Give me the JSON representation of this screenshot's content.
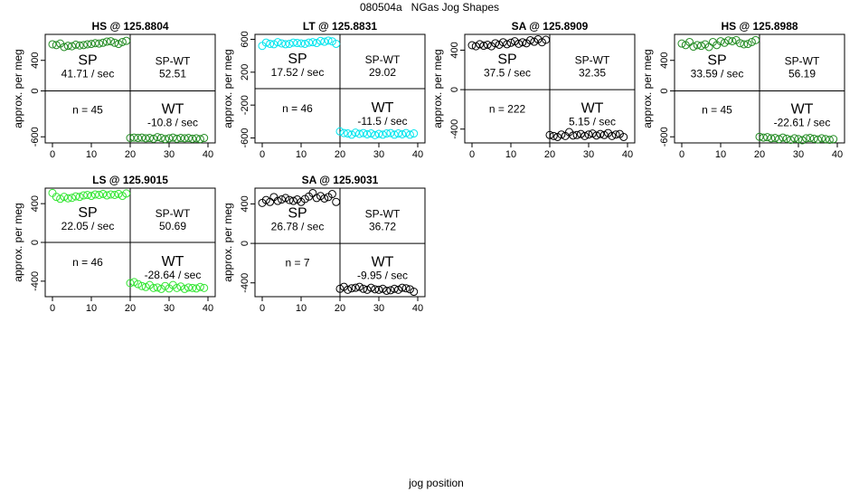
{
  "page": {
    "title": "080504a   NGas Jog Shapes",
    "xlabel": "jog position"
  },
  "chart_data": [
    {
      "type": "scatter",
      "title": "HS @ 125.8804",
      "ylabel": "approx. per meg",
      "xlim": [
        0,
        40
      ],
      "ylim": [
        -680,
        740
      ],
      "x_ticks": [
        0,
        10,
        20,
        30,
        40
      ],
      "y_ticks": [
        -600,
        0,
        400
      ],
      "color": "#228b22",
      "divider_x": 20,
      "divider_y": 0,
      "labels": {
        "sp": "SP",
        "sp_rate": "41.71 / sec",
        "spwt": "SP-WT",
        "spwt_value": "52.51",
        "n": "n = 45",
        "wt": "WT",
        "wt_rate": "-10.8 / sec"
      },
      "x": [
        0,
        1,
        2,
        3,
        4,
        5,
        6,
        7,
        8,
        9,
        10,
        11,
        12,
        13,
        14,
        15,
        16,
        17,
        18,
        19,
        20,
        21,
        22,
        23,
        24,
        25,
        26,
        27,
        28,
        29,
        30,
        31,
        32,
        33,
        34,
        35,
        36,
        37,
        38,
        39
      ],
      "y": [
        610,
        600,
        620,
        575,
        590,
        585,
        605,
        595,
        600,
        610,
        615,
        625,
        620,
        630,
        645,
        650,
        630,
        615,
        640,
        655,
        -615,
        -610,
        -615,
        -610,
        -620,
        -615,
        -625,
        -605,
        -615,
        -630,
        -620,
        -610,
        -625,
        -615,
        -620,
        -615,
        -625,
        -620,
        -630,
        -615
      ]
    },
    {
      "type": "scatter",
      "title": "LT @ 125.8831",
      "ylabel": "approx. per meg",
      "xlim": [
        0,
        40
      ],
      "ylim": [
        -660,
        660
      ],
      "x_ticks": [
        0,
        10,
        20,
        30,
        40
      ],
      "y_ticks": [
        -600,
        -200,
        200,
        600
      ],
      "color": "#00e5ee",
      "divider_x": 20,
      "divider_y": 0,
      "labels": {
        "sp": "SP",
        "sp_rate": "17.52 / sec",
        "spwt": "SP-WT",
        "spwt_value": "29.02",
        "n": "n = 46",
        "wt": "WT",
        "wt_rate": "-11.5 / sec"
      },
      "x": [
        0,
        1,
        2,
        3,
        4,
        5,
        6,
        7,
        8,
        9,
        10,
        11,
        12,
        13,
        14,
        15,
        16,
        17,
        18,
        19,
        20,
        21,
        22,
        23,
        24,
        25,
        26,
        27,
        28,
        29,
        30,
        31,
        32,
        33,
        34,
        35,
        36,
        37,
        38,
        39
      ],
      "y": [
        520,
        560,
        545,
        540,
        565,
        550,
        540,
        545,
        560,
        555,
        550,
        545,
        560,
        565,
        555,
        580,
        570,
        585,
        575,
        545,
        -520,
        -540,
        -545,
        -560,
        -535,
        -550,
        -540,
        -555,
        -545,
        -565,
        -550,
        -560,
        -545,
        -540,
        -560,
        -545,
        -555,
        -540,
        -560,
        -545
      ]
    },
    {
      "type": "scatter",
      "title": "SA @ 125.8909",
      "ylabel": "approx. per meg",
      "xlim": [
        0,
        40
      ],
      "ylim": [
        -540,
        560
      ],
      "x_ticks": [
        0,
        10,
        20,
        30,
        40
      ],
      "y_ticks": [
        -400,
        0,
        400
      ],
      "color": "#000000",
      "divider_x": 20,
      "divider_y": 0,
      "labels": {
        "sp": "SP",
        "sp_rate": "37.5 / sec",
        "spwt": "SP-WT",
        "spwt_value": "32.35",
        "n": "n = 222",
        "wt": "WT",
        "wt_rate": "5.15 / sec"
      },
      "x": [
        0,
        1,
        2,
        3,
        4,
        5,
        6,
        7,
        8,
        9,
        10,
        11,
        12,
        13,
        14,
        15,
        16,
        17,
        18,
        19,
        20,
        21,
        22,
        23,
        24,
        25,
        26,
        27,
        28,
        29,
        30,
        31,
        32,
        33,
        34,
        35,
        36,
        37,
        38,
        39
      ],
      "y": [
        450,
        440,
        460,
        445,
        455,
        440,
        470,
        455,
        480,
        460,
        475,
        490,
        465,
        480,
        470,
        500,
        485,
        510,
        480,
        505,
        -460,
        -470,
        -480,
        -455,
        -470,
        -430,
        -465,
        -460,
        -450,
        -470,
        -455,
        -445,
        -465,
        -450,
        -460,
        -440,
        -470,
        -455,
        -450,
        -480
      ]
    },
    {
      "type": "scatter",
      "title": "HS @ 125.8988",
      "ylabel": "approx. per meg",
      "xlim": [
        0,
        40
      ],
      "ylim": [
        -680,
        740
      ],
      "x_ticks": [
        0,
        10,
        20,
        30,
        40
      ],
      "y_ticks": [
        -600,
        0,
        400
      ],
      "color": "#228b22",
      "divider_x": 20,
      "divider_y": 0,
      "labels": {
        "sp": "SP",
        "sp_rate": "33.59 / sec",
        "spwt": "SP-WT",
        "spwt_value": "56.19",
        "n": "n = 45",
        "wt": "WT",
        "wt_rate": "-22.61 / sec"
      },
      "x": [
        0,
        1,
        2,
        3,
        4,
        5,
        6,
        7,
        8,
        9,
        10,
        11,
        12,
        13,
        14,
        15,
        16,
        17,
        18,
        19,
        20,
        21,
        22,
        23,
        24,
        25,
        26,
        27,
        28,
        29,
        30,
        31,
        32,
        33,
        34,
        35,
        36,
        37,
        38,
        39
      ],
      "y": [
        620,
        600,
        640,
        580,
        600,
        590,
        610,
        575,
        640,
        600,
        650,
        630,
        660,
        650,
        665,
        625,
        610,
        615,
        640,
        665,
        -600,
        -610,
        -605,
        -620,
        -615,
        -630,
        -610,
        -625,
        -640,
        -620,
        -630,
        -645,
        -620,
        -615,
        -625,
        -635,
        -620,
        -630,
        -640,
        -630
      ]
    },
    {
      "type": "scatter",
      "title": "LS @ 125.9015",
      "ylabel": "approx. per meg",
      "xlim": [
        0,
        40
      ],
      "ylim": [
        -560,
        560
      ],
      "x_ticks": [
        0,
        10,
        20,
        30,
        40
      ],
      "y_ticks": [
        -400,
        0,
        400
      ],
      "color": "#32e632",
      "divider_x": 20,
      "divider_y": 0,
      "labels": {
        "sp": "SP",
        "sp_rate": "22.05 / sec",
        "spwt": "SP-WT",
        "spwt_value": "50.69",
        "n": "n = 46",
        "wt": "WT",
        "wt_rate": "-28.64 / sec"
      },
      "x": [
        0,
        1,
        2,
        3,
        4,
        5,
        6,
        7,
        8,
        9,
        10,
        11,
        12,
        13,
        14,
        15,
        16,
        17,
        18,
        19,
        20,
        21,
        22,
        23,
        24,
        25,
        26,
        27,
        28,
        29,
        30,
        31,
        32,
        33,
        34,
        35,
        36,
        37,
        38,
        39
      ],
      "y": [
        510,
        470,
        450,
        470,
        455,
        460,
        475,
        470,
        485,
        490,
        480,
        495,
        490,
        500,
        485,
        495,
        490,
        500,
        480,
        505,
        -420,
        -410,
        -430,
        -450,
        -460,
        -440,
        -470,
        -465,
        -480,
        -450,
        -475,
        -440,
        -470,
        -455,
        -480,
        -465,
        -470,
        -475,
        -460,
        -470
      ]
    },
    {
      "type": "scatter",
      "title": "SA @ 125.9031",
      "ylabel": "approx. per meg",
      "xlim": [
        0,
        40
      ],
      "ylim": [
        -540,
        560
      ],
      "x_ticks": [
        0,
        10,
        20,
        30,
        40
      ],
      "y_ticks": [
        -400,
        0,
        400
      ],
      "color": "#000000",
      "divider_x": 20,
      "divider_y": 0,
      "labels": {
        "sp": "SP",
        "sp_rate": "26.78 / sec",
        "spwt": "SP-WT",
        "spwt_value": "36.72",
        "n": "n = 7",
        "wt": "WT",
        "wt_rate": "-9.95 / sec"
      },
      "x": [
        0,
        1,
        2,
        3,
        4,
        5,
        6,
        7,
        8,
        9,
        10,
        11,
        12,
        13,
        14,
        15,
        16,
        17,
        18,
        19,
        20,
        21,
        22,
        23,
        24,
        25,
        26,
        27,
        28,
        29,
        30,
        31,
        32,
        33,
        34,
        35,
        36,
        37,
        38,
        39
      ],
      "y": [
        410,
        440,
        420,
        470,
        430,
        445,
        460,
        440,
        430,
        445,
        420,
        450,
        475,
        510,
        460,
        480,
        455,
        470,
        500,
        420,
        -460,
        -440,
        -470,
        -455,
        -450,
        -440,
        -460,
        -470,
        -450,
        -465,
        -470,
        -460,
        -480,
        -475,
        -460,
        -470,
        -450,
        -455,
        -465,
        -490
      ]
    }
  ]
}
